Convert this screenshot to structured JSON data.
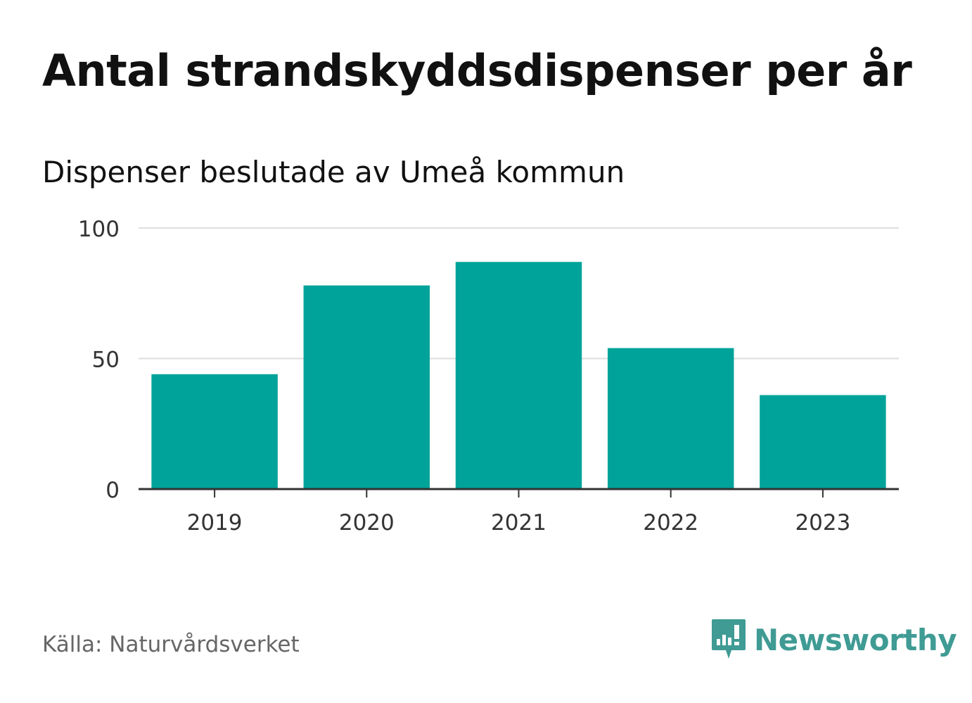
{
  "title": "Antal strandskyddsdispenser per år",
  "subtitle": "Dispenser beslutade av Umeå kommun",
  "source": "Källa: Naturvårdsverket",
  "brand": {
    "name": "Newsworthy",
    "icon": "newsworthy-logo-icon",
    "color": "#3f9b94"
  },
  "colors": {
    "bar": "#00a399",
    "grid": "#dddddd",
    "axis": "#333333",
    "tick_text": "#333333"
  },
  "chart_data": {
    "type": "bar",
    "title": "Antal strandskyddsdispenser per år",
    "subtitle": "Dispenser beslutade av Umeå kommun",
    "categories": [
      "2019",
      "2020",
      "2021",
      "2022",
      "2023"
    ],
    "values": [
      44,
      78,
      87,
      54,
      36
    ],
    "xlabel": "",
    "ylabel": "",
    "ylim": [
      0,
      100
    ],
    "yticks": [
      0,
      50,
      100
    ],
    "grid": true,
    "legend": "none"
  }
}
